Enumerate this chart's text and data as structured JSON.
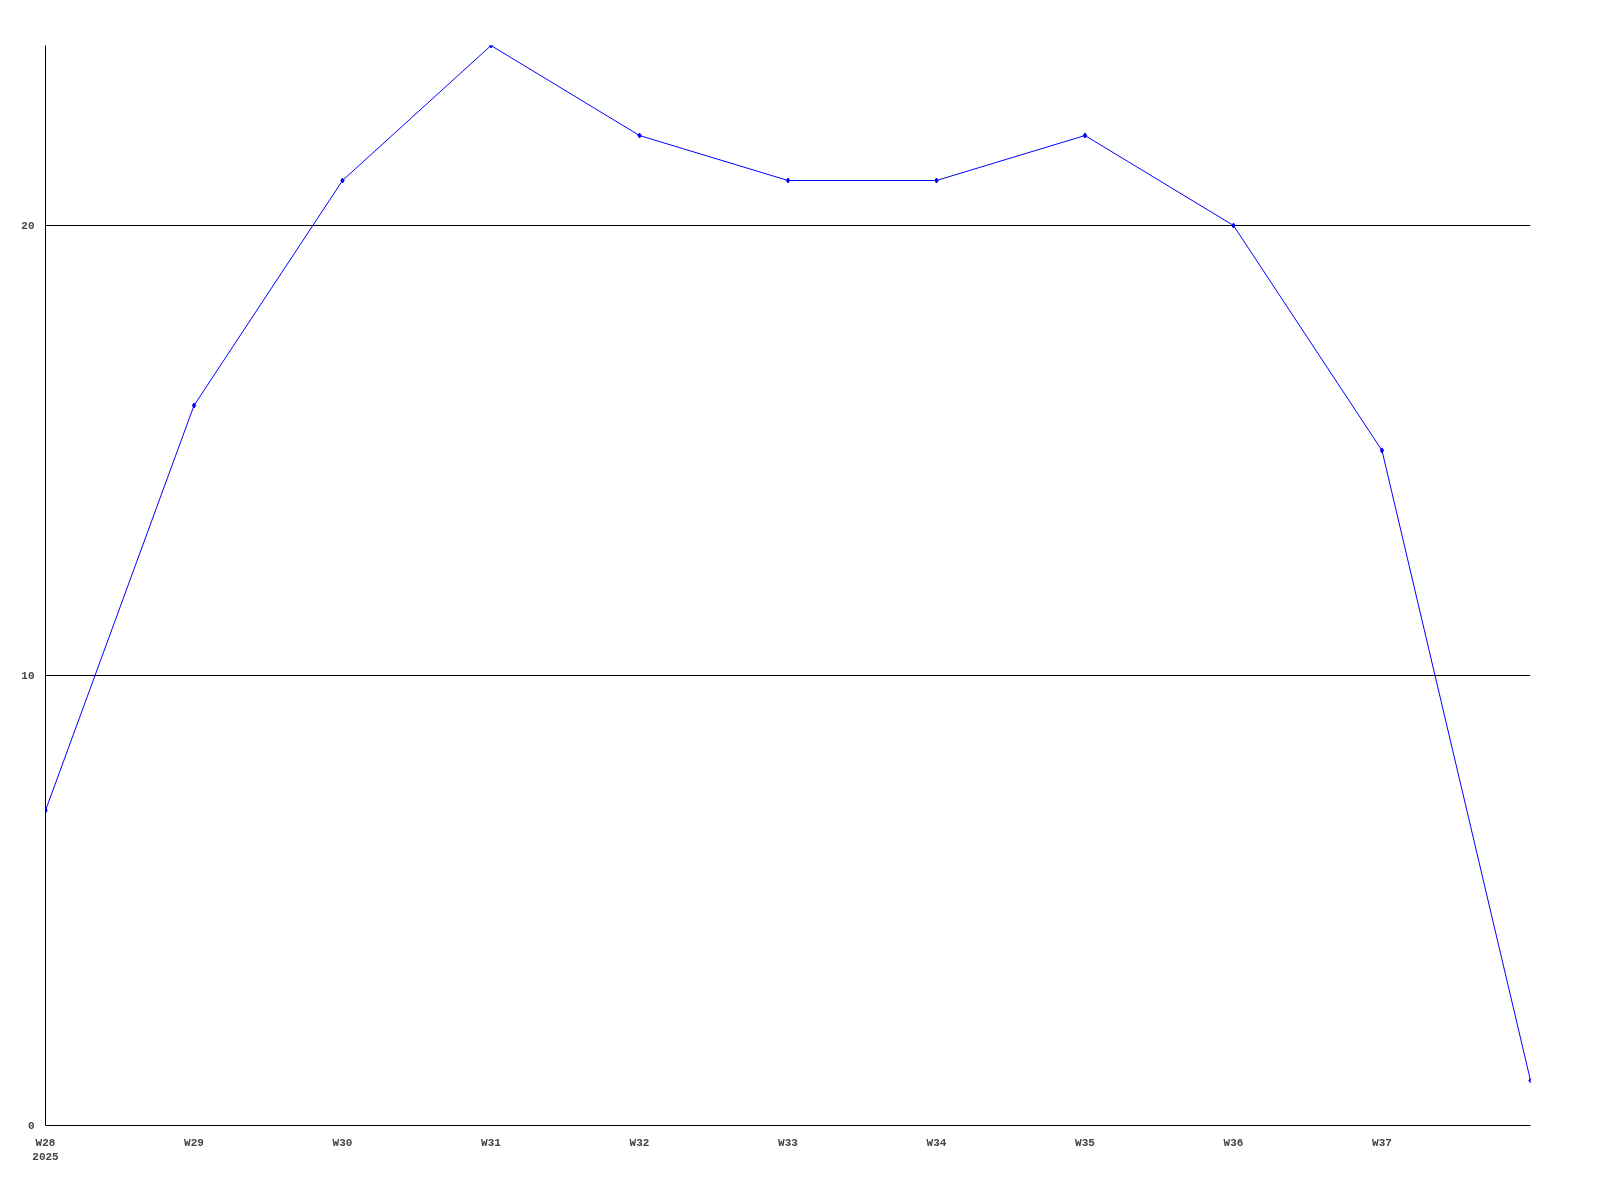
{
  "chart_data": {
    "type": "line",
    "categories": [
      "W28\n2025",
      "W29",
      "W30",
      "W31",
      "W32",
      "W33",
      "W34",
      "W35",
      "W36",
      "W37",
      null
    ],
    "series": [
      {
        "color": "#0000ff",
        "values": [
          7,
          16,
          21,
          24,
          22,
          21,
          21,
          22,
          20,
          15,
          1
        ]
      }
    ],
    "ylim": [
      0,
      24
    ],
    "yticks": [
      0,
      10,
      20
    ],
    "grid": "y",
    "marker": "diamond",
    "line_style": "solid"
  }
}
